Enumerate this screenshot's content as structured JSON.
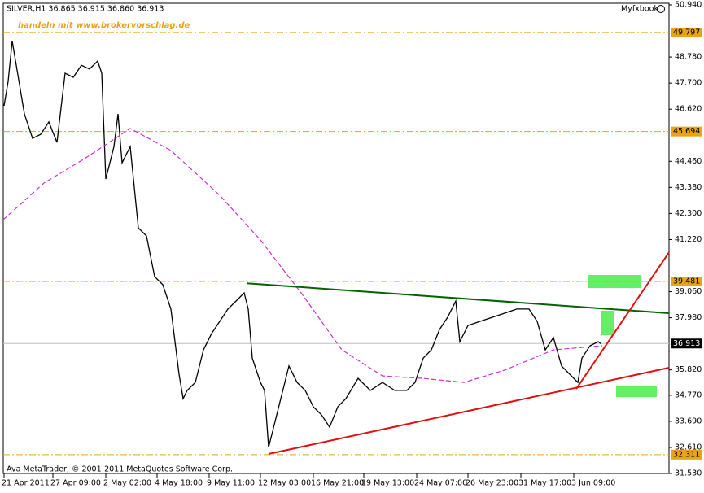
{
  "chart_data": {
    "type": "line",
    "title": "SILVER,H1  36.865 36.915 36.860 36.913",
    "annotation": "handeln mit www.brokervorschlag.de",
    "brand": "Myfxbook",
    "footer": "Ava MetaTrader, © 2001-2011 MetaQuotes Software Corp.",
    "xlim": [
      0,
      818
    ],
    "ylim": [
      31.53,
      50.94
    ],
    "xticks": [
      {
        "value": 1,
        "label": "21 Apr 2011"
      },
      {
        "value": 61,
        "label": "27 Apr 09:00"
      },
      {
        "value": 126,
        "label": "2 May 02:00"
      },
      {
        "value": 189,
        "label": "4 May 18:00"
      },
      {
        "value": 253,
        "label": "9 May 11:00"
      },
      {
        "value": 316,
        "label": "12 May 03:00"
      },
      {
        "value": 381,
        "label": "16 May 21:00"
      },
      {
        "value": 443,
        "label": "19 May 13:00"
      },
      {
        "value": 508,
        "label": "24 May 07:00"
      },
      {
        "value": 571,
        "label": "26 May 23:00"
      },
      {
        "value": 636,
        "label": "31 May 17:00"
      },
      {
        "value": 701,
        "label": "3 Jun 09:00"
      }
    ],
    "yticks": [
      {
        "value": 50.94,
        "label": "50.940"
      },
      {
        "value": 48.78,
        "label": "48.780"
      },
      {
        "value": 47.7,
        "label": "47.700"
      },
      {
        "value": 46.62,
        "label": "46.620"
      },
      {
        "value": 44.46,
        "label": "44.460"
      },
      {
        "value": 43.38,
        "label": "43.380"
      },
      {
        "value": 42.3,
        "label": "42.300"
      },
      {
        "value": 41.22,
        "label": "41.220"
      },
      {
        "value": 39.06,
        "label": "39.060"
      },
      {
        "value": 37.98,
        "label": "37.980"
      },
      {
        "value": 35.82,
        "label": "35.820"
      },
      {
        "value": 34.77,
        "label": "34.770"
      },
      {
        "value": 33.69,
        "label": "33.690"
      },
      {
        "value": 32.61,
        "label": "32.610"
      },
      {
        "value": 31.53,
        "label": "31.530"
      }
    ],
    "levels": [
      {
        "value": 49.797,
        "label": "49.797",
        "color": "#e8a317"
      },
      {
        "value": 45.694,
        "label": "45.694",
        "color": "#e8a317"
      },
      {
        "value": 39.481,
        "label": "39.481",
        "color": "#e8a317"
      },
      {
        "value": 32.311,
        "label": "32.311",
        "color": "#e8a317"
      },
      {
        "value": 36.913,
        "label": "36.913",
        "color": "#c0c0c0"
      }
    ],
    "series": [
      {
        "color": "#000000",
        "style": "solid",
        "x": [
          1,
          6,
          11,
          16,
          26,
          36,
          46,
          56,
          66,
          76,
          86,
          96,
          106,
          116,
          121,
          126,
          136,
          141,
          146,
          156,
          166,
          176,
          186,
          196,
          206,
          216,
          221,
          226,
          236,
          246,
          256,
          266,
          276,
          286,
          296,
          301,
          306,
          316,
          321,
          326,
          331,
          341,
          351,
          361,
          371,
          381,
          391,
          401,
          411,
          421,
          436,
          451,
          466,
          481,
          496,
          506,
          516,
          526,
          536,
          546,
          556,
          561,
          571,
          586,
          601,
          616,
          631,
          646,
          656,
          666,
          676,
          686,
          696,
          706,
          711,
          721,
          731,
          734
        ],
        "values": [
          46.76,
          47.77,
          49.45,
          48.44,
          46.42,
          45.41,
          45.58,
          46.09,
          45.24,
          48.11,
          47.94,
          48.44,
          48.28,
          48.61,
          48.11,
          43.73,
          45.07,
          46.42,
          44.4,
          45.07,
          41.7,
          41.37,
          39.68,
          39.35,
          38.34,
          35.64,
          34.63,
          34.97,
          35.3,
          36.65,
          37.33,
          37.83,
          38.34,
          38.67,
          39.01,
          38.34,
          36.31,
          35.3,
          34.97,
          32.61,
          33.28,
          34.63,
          35.98,
          35.3,
          34.97,
          34.29,
          33.96,
          33.45,
          34.29,
          34.63,
          35.47,
          34.97,
          35.3,
          34.97,
          34.97,
          35.3,
          36.31,
          36.65,
          37.49,
          38.0,
          38.67,
          36.99,
          37.66,
          37.83,
          38.0,
          38.17,
          38.34,
          38.34,
          37.83,
          36.65,
          37.16,
          35.98,
          35.64,
          35.3,
          36.31,
          36.82,
          36.99,
          36.91
        ]
      },
      {
        "color": "#cc33cc",
        "style": "dashed",
        "x": [
          0,
          50,
          100,
          156,
          206,
          266,
          316,
          366,
          416,
          466,
          516,
          566,
          616,
          676,
          736
        ],
        "values": [
          42.04,
          43.56,
          44.57,
          45.82,
          44.91,
          43.05,
          41.2,
          39.01,
          36.65,
          35.57,
          35.47,
          35.3,
          35.81,
          36.65,
          36.82
        ]
      }
    ],
    "trendlines": [
      {
        "color": "#006400",
        "x": [
          299,
          818
        ],
        "values": [
          39.41,
          38.17
        ]
      },
      {
        "color": "#e01010",
        "x": [
          326,
          818
        ],
        "values": [
          32.34,
          35.91
        ]
      },
      {
        "color": "#e01010",
        "x": [
          704,
          818
        ],
        "values": [
          35.03,
          40.69
        ]
      }
    ]
  }
}
